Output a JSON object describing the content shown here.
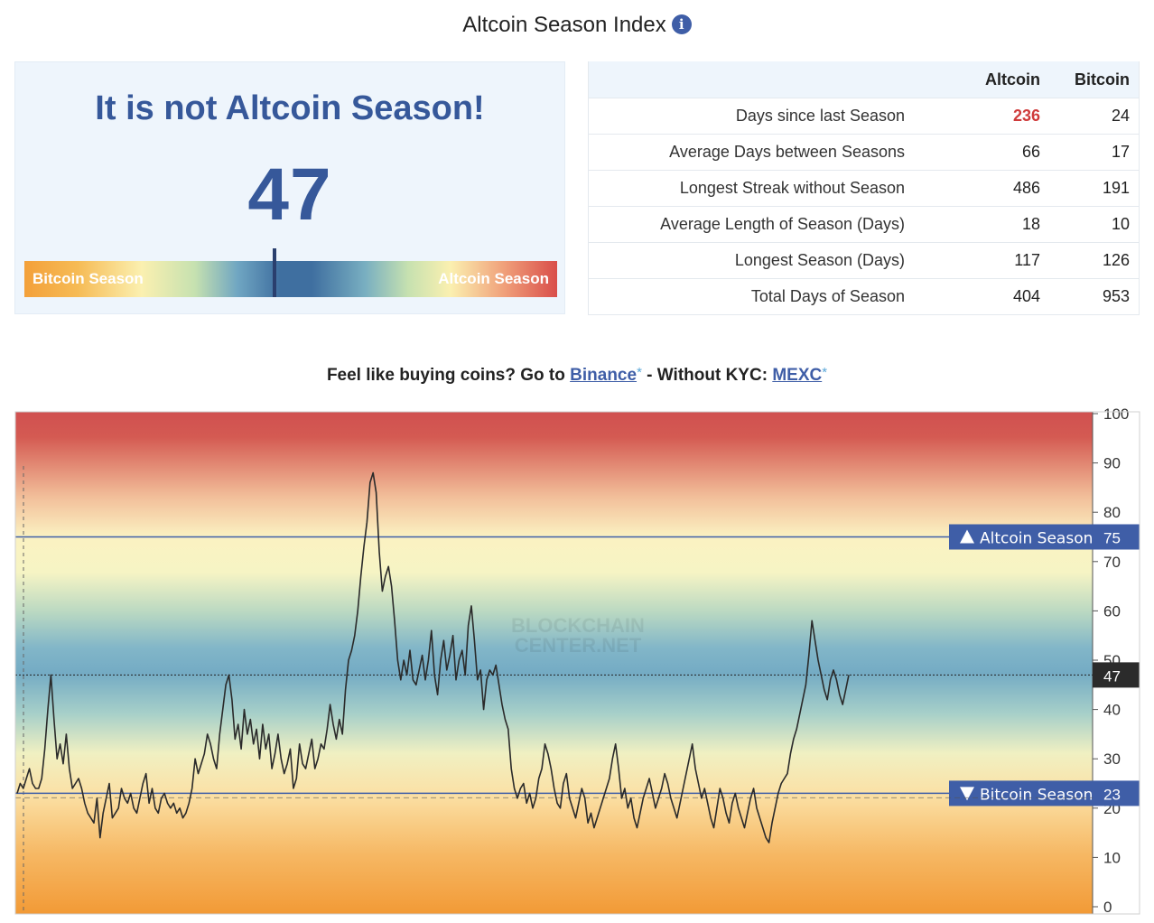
{
  "header": {
    "title": "Altcoin Season Index",
    "info_icon": "info-icon"
  },
  "status": {
    "headline": "It is not Altcoin Season!",
    "value": "47",
    "gauge_left": "Bitcoin Season",
    "gauge_right": "Altcoin Season",
    "gauge_fraction": 0.47
  },
  "stats": {
    "col_altcoin": "Altcoin",
    "col_bitcoin": "Bitcoin",
    "rows": [
      {
        "label": "Days since last Season",
        "altcoin": "236",
        "bitcoin": "24"
      },
      {
        "label": "Average Days between Seasons",
        "altcoin": "66",
        "bitcoin": "17"
      },
      {
        "label": "Longest Streak without Season",
        "altcoin": "486",
        "bitcoin": "191"
      },
      {
        "label": "Average Length of Season (Days)",
        "altcoin": "18",
        "bitcoin": "10"
      },
      {
        "label": "Longest Season (Days)",
        "altcoin": "117",
        "bitcoin": "126"
      },
      {
        "label": "Total Days of Season",
        "altcoin": "404",
        "bitcoin": "953"
      }
    ],
    "highlight_color": "#cf3b3b"
  },
  "promo": {
    "text_before": "Feel like buying coins? Go to ",
    "link1": "Binance",
    "star": "*",
    "text_mid": " - Without KYC: ",
    "link2": "MEXC"
  },
  "chart_data": {
    "type": "line",
    "title": "",
    "xlabel": "",
    "ylabel": "",
    "ylim": [
      0,
      100
    ],
    "y_ticks": [
      0,
      10,
      20,
      30,
      40,
      50,
      60,
      70,
      80,
      90,
      100
    ],
    "watermark": "BLOCKCHAIN CENTER.NET",
    "current_value": 47,
    "current_label": "47",
    "thresholds": [
      {
        "label": "Altcoin Season",
        "value": 75,
        "value_label": "75",
        "color": "#3f5ea7",
        "marker": "up-triangle"
      },
      {
        "label": "Bitcoin Season",
        "value": 23,
        "value_label": "23",
        "color": "#3f5ea7",
        "marker": "down-triangle"
      }
    ],
    "series": [
      {
        "values": [
          23,
          25,
          24,
          26,
          28,
          25,
          24,
          24,
          26,
          32,
          40,
          47,
          38,
          30,
          33,
          29,
          35,
          28,
          24,
          25,
          26,
          24,
          21,
          19,
          18,
          17,
          22,
          14,
          19,
          22,
          25,
          18,
          19,
          20,
          24,
          22,
          21,
          23,
          20,
          19,
          22,
          25,
          27,
          21,
          24,
          20,
          19,
          22,
          23,
          21,
          20,
          21,
          19,
          20,
          18,
          19,
          21,
          24,
          30,
          27,
          29,
          31,
          35,
          33,
          30,
          28,
          35,
          40,
          45,
          47,
          42,
          34,
          37,
          32,
          40,
          35,
          38,
          33,
          36,
          30,
          37,
          32,
          35,
          28,
          31,
          35,
          30,
          27,
          29,
          32,
          24,
          26,
          33,
          29,
          28,
          31,
          34,
          28,
          30,
          33,
          32,
          36,
          41,
          37,
          34,
          38,
          35,
          44,
          50,
          52,
          55,
          60,
          67,
          73,
          78,
          86,
          88,
          84,
          72,
          64,
          67,
          69,
          65,
          58,
          50,
          46,
          50,
          47,
          52,
          46,
          45,
          48,
          51,
          46,
          50,
          56,
          47,
          43,
          50,
          54,
          48,
          51,
          55,
          46,
          50,
          52,
          47,
          57,
          61,
          54,
          46,
          48,
          40,
          46,
          48,
          47,
          49,
          45,
          41,
          38,
          36,
          28,
          24,
          22,
          24,
          25,
          21,
          23,
          20,
          22,
          26,
          28,
          33,
          31,
          28,
          24,
          21,
          20,
          25,
          27,
          22,
          20,
          18,
          21,
          24,
          22,
          17,
          19,
          16,
          18,
          20,
          22,
          24,
          26,
          30,
          33,
          28,
          22,
          24,
          20,
          22,
          18,
          16,
          19,
          22,
          24,
          26,
          23,
          20,
          22,
          24,
          27,
          25,
          22,
          20,
          18,
          21,
          24,
          27,
          30,
          33,
          28,
          25,
          22,
          24,
          21,
          18,
          16,
          20,
          24,
          22,
          19,
          17,
          21,
          23,
          20,
          18,
          16,
          19,
          22,
          24,
          20,
          18,
          16,
          14,
          13,
          17,
          20,
          23,
          25,
          26,
          27,
          31,
          34,
          36,
          39,
          42,
          45,
          51,
          58,
          54,
          50,
          47,
          44,
          42,
          46,
          48,
          46,
          43,
          41,
          44,
          47
        ]
      }
    ]
  }
}
